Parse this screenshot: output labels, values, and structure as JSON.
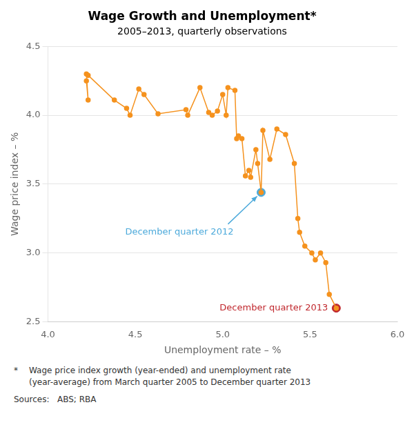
{
  "chart_data": {
    "type": "line",
    "title": "Wage Growth and Unemployment*",
    "subtitle": "2005–2013, quarterly observations",
    "x_label": "Unemployment rate – %",
    "y_label": "Wage price index – %",
    "xlim": [
      4.0,
      6.0
    ],
    "ylim": [
      2.5,
      4.5
    ],
    "xticks": [
      {
        "value": 4.0,
        "label": "4.0"
      },
      4.5,
      {
        "value": 5.0,
        "label": "5.0"
      },
      5.5,
      {
        "value": 6.0,
        "label": "6.0"
      }
    ],
    "yticks": [
      2.5,
      {
        "value": 3.0,
        "label": "3.0"
      },
      3.5,
      {
        "value": 4.0,
        "label": "4.0"
      },
      4.5
    ],
    "grid": "y",
    "legend": false,
    "color": "#F5921E",
    "marker": "circle",
    "x": [
      4.22,
      4.23,
      4.22,
      4.23,
      4.38,
      4.45,
      4.47,
      4.52,
      4.55,
      4.63,
      4.79,
      4.8,
      4.87,
      4.92,
      4.94,
      4.97,
      5.0,
      5.02,
      5.03,
      5.07,
      5.08,
      5.09,
      5.11,
      5.13,
      5.15,
      5.16,
      5.19,
      5.2,
      5.22,
      5.23,
      5.27,
      5.31,
      5.36,
      5.41,
      5.43,
      5.44,
      5.47,
      5.51,
      5.53,
      5.56,
      5.59,
      5.61,
      5.65
    ],
    "values": [
      4.25,
      4.11,
      4.3,
      4.29,
      4.11,
      4.05,
      4.0,
      4.19,
      4.15,
      4.01,
      4.04,
      4.0,
      4.2,
      4.02,
      4.0,
      4.03,
      4.15,
      4.0,
      4.2,
      4.18,
      3.83,
      3.85,
      3.83,
      3.56,
      3.6,
      3.55,
      3.75,
      3.65,
      3.44,
      3.89,
      3.68,
      3.9,
      3.86,
      3.65,
      3.25,
      3.15,
      3.05,
      3.0,
      2.95,
      3.0,
      2.93,
      2.7,
      2.6
    ],
    "annotations": [
      {
        "text": "December quarter 2012",
        "x": 5.22,
        "y": 3.44,
        "color": "#4DAADB"
      },
      {
        "text": "December quarter 2013",
        "x": 5.65,
        "y": 2.6,
        "color": "#C0272D"
      }
    ],
    "footnote_marker": "*",
    "footnote": [
      "Wage price index growth (year-ended) and unemployment rate",
      "(year-average) from March quarter 2005 to December quarter 2013"
    ],
    "sources": "Sources:   ABS; RBA"
  }
}
